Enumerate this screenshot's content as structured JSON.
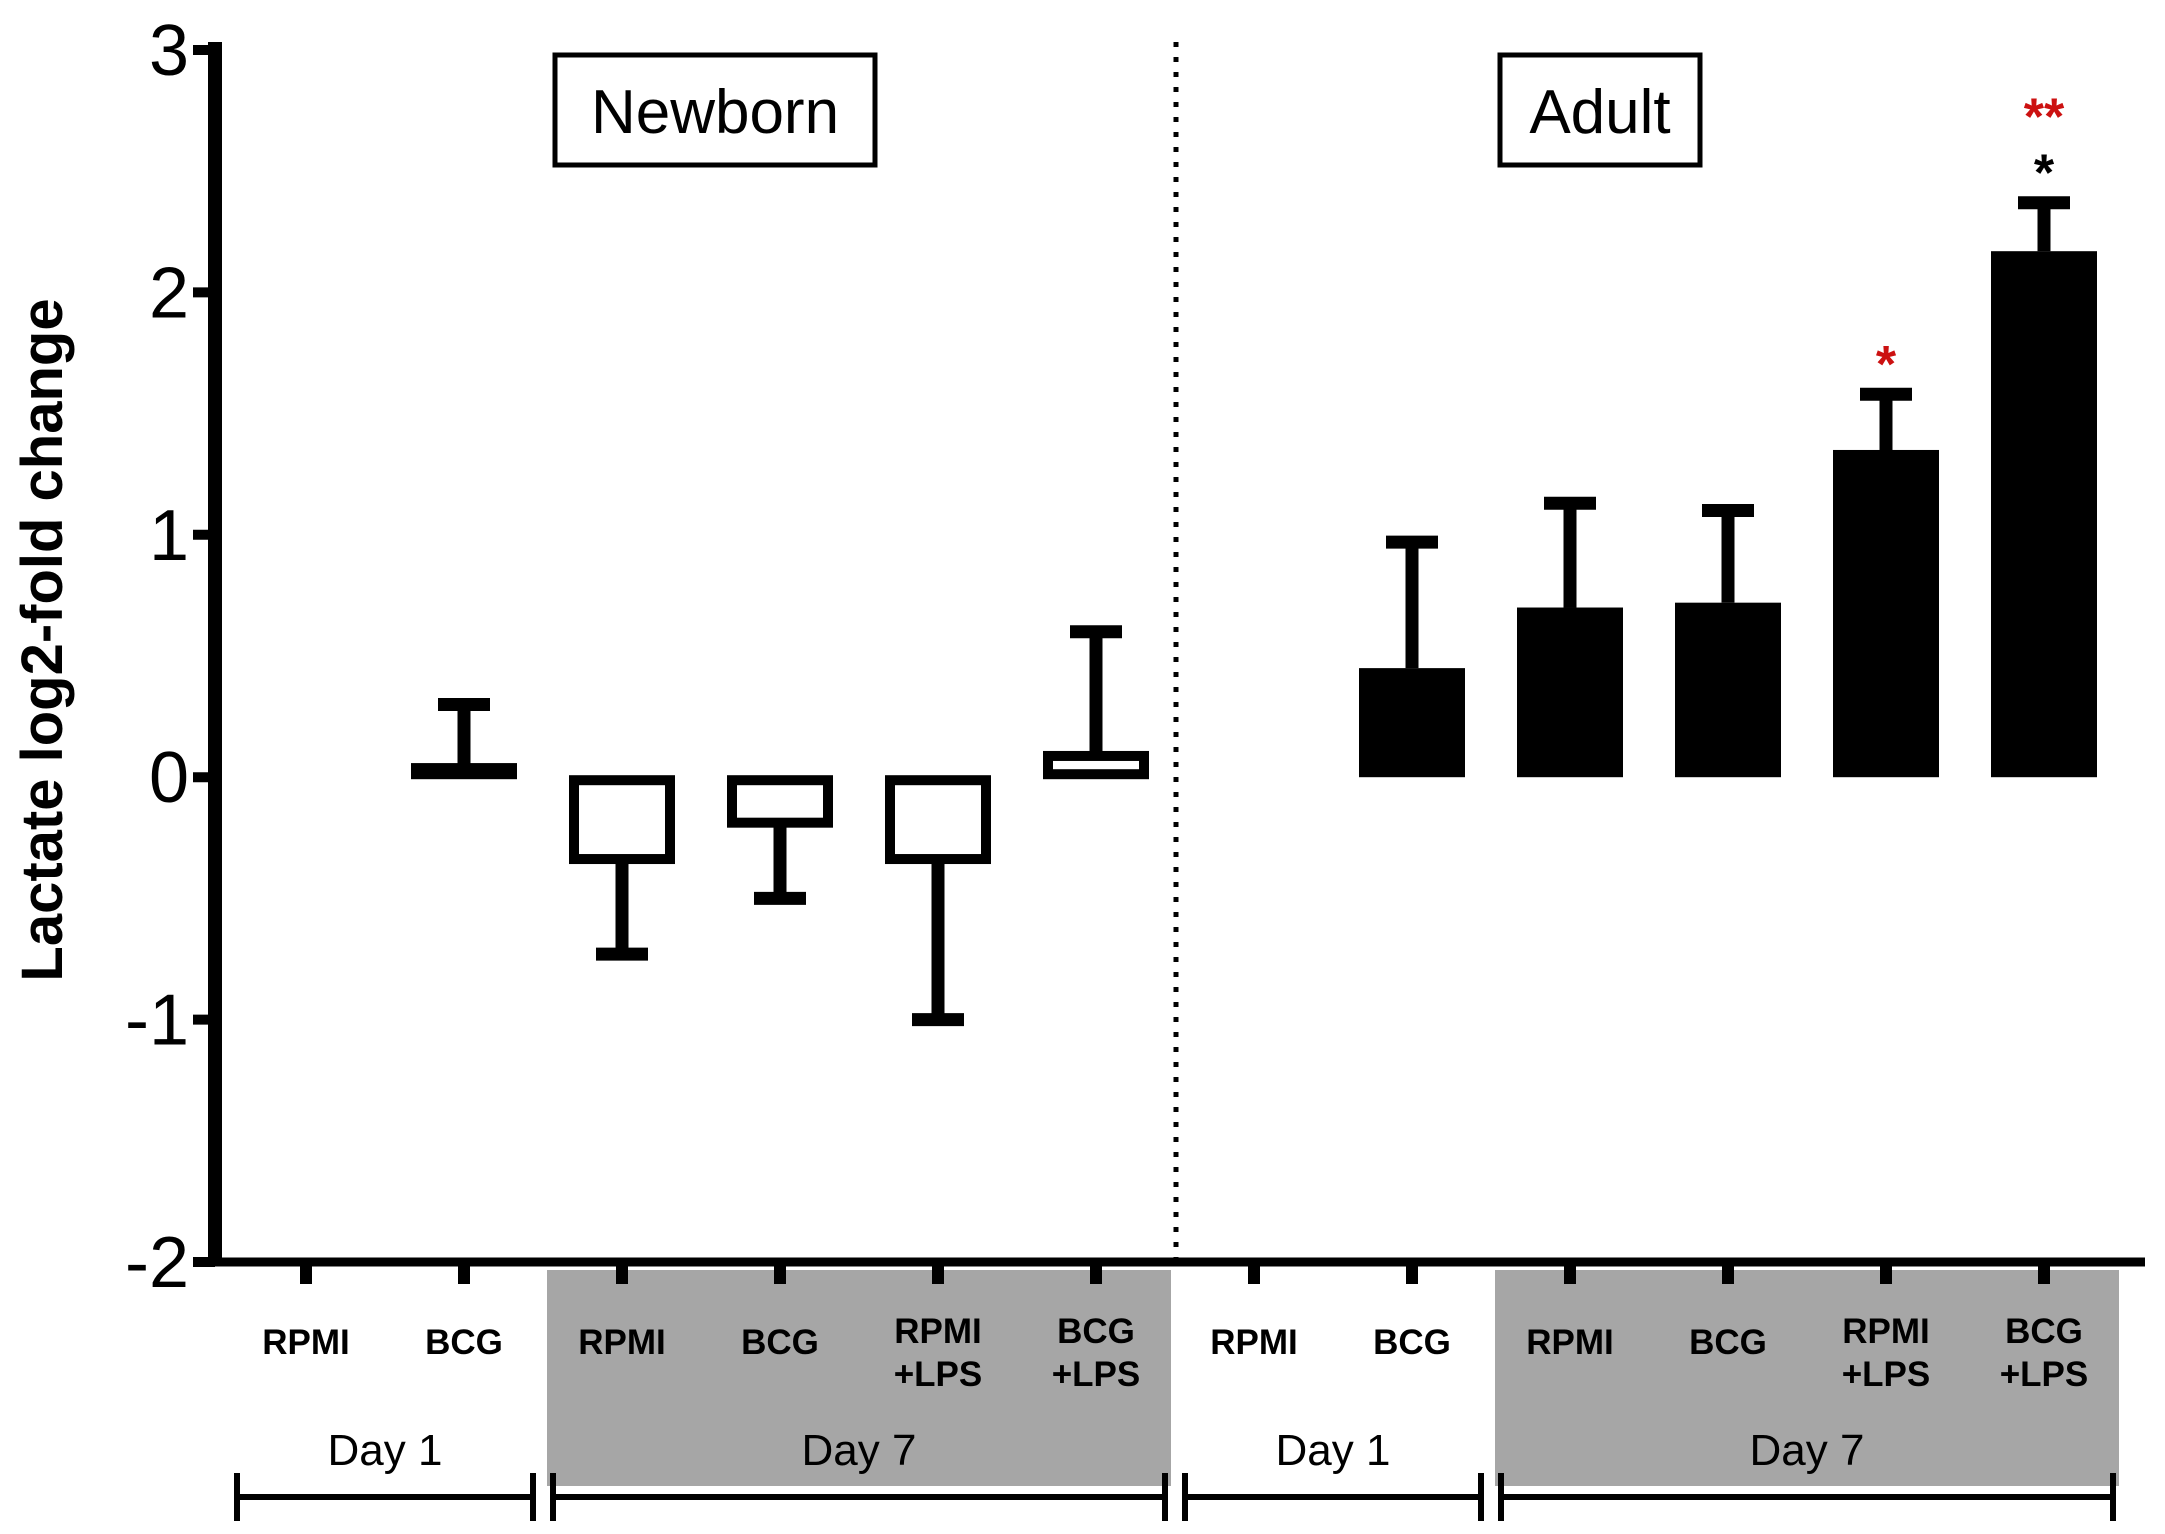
{
  "chart_data": {
    "type": "bar",
    "ylabel": "Lactate log2-fold change",
    "ylim": [
      -2,
      3
    ],
    "yticks": [
      3,
      2,
      1,
      0,
      -1,
      -2
    ],
    "groups": [
      {
        "title": "Newborn",
        "fill": "#ffffff",
        "bars": [
          {
            "label": [
              "RPMI"
            ],
            "day": "Day 1",
            "value": 0.0,
            "error": 0.0,
            "sig": []
          },
          {
            "label": [
              "BCG"
            ],
            "day": "Day 1",
            "value": 0.05,
            "error": 0.25,
            "sig": []
          },
          {
            "label": [
              "RPMI"
            ],
            "day": "Day 7",
            "value": -0.35,
            "error": 0.38,
            "sig": []
          },
          {
            "label": [
              "BCG"
            ],
            "day": "Day 7",
            "value": -0.2,
            "error": 0.3,
            "sig": []
          },
          {
            "label": [
              "RPMI",
              "+LPS"
            ],
            "day": "Day 7",
            "value": -0.35,
            "error": 0.65,
            "sig": []
          },
          {
            "label": [
              "BCG",
              "+LPS"
            ],
            "day": "Day 7",
            "value": 0.1,
            "error": 0.5,
            "sig": []
          }
        ]
      },
      {
        "title": "Adult",
        "fill": "#000000",
        "bars": [
          {
            "label": [
              "RPMI"
            ],
            "day": "Day 1",
            "value": 0.0,
            "error": 0.0,
            "sig": []
          },
          {
            "label": [
              "BCG"
            ],
            "day": "Day 1",
            "value": 0.45,
            "error": 0.52,
            "sig": []
          },
          {
            "label": [
              "RPMI"
            ],
            "day": "Day 7",
            "value": 0.7,
            "error": 0.43,
            "sig": []
          },
          {
            "label": [
              "BCG"
            ],
            "day": "Day 7",
            "value": 0.72,
            "error": 0.38,
            "sig": []
          },
          {
            "label": [
              "RPMI",
              "+LPS"
            ],
            "day": "Day 7",
            "value": 1.35,
            "error": 0.23,
            "sig": [
              {
                "text": "*",
                "color": "#cc1111"
              }
            ]
          },
          {
            "label": [
              "BCG",
              "+LPS"
            ],
            "day": "Day 7",
            "value": 2.17,
            "error": 0.2,
            "sig": [
              {
                "text": "*",
                "color": "#000000"
              },
              {
                "text": "**",
                "color": "#cc1111"
              }
            ]
          }
        ]
      }
    ],
    "day_labels": [
      "Day 1",
      "Day 7",
      "Day 1",
      "Day 7"
    ],
    "shade_color": "#a6a6a6",
    "sig_red": "#cc1111"
  }
}
